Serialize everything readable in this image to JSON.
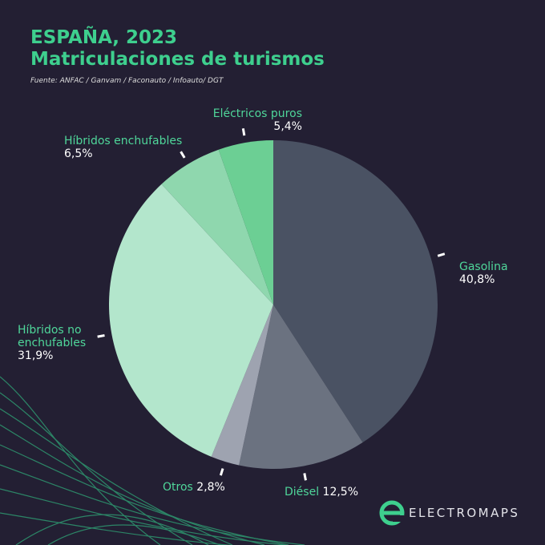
{
  "chart_data": {
    "type": "pie",
    "title": "ESPAÑA, 2023",
    "subtitle": "Matriculaciones de turismos",
    "source": "Fuente: ANFAC / Ganvam / Faconauto / Infoauto/ DGT",
    "categories": [
      "Gasolina",
      "Diésel",
      "Otros",
      "Híbridos no enchufables",
      "Híbridos enchufables",
      "Eléctricos puros"
    ],
    "values": [
      40.8,
      12.5,
      2.8,
      31.9,
      6.5,
      5.4
    ],
    "value_labels": [
      "40,8%",
      "12,5%",
      "2,8%",
      "31,9%",
      "6,5%",
      "5,4%"
    ],
    "colors": [
      "#4a5263",
      "#6b7280",
      "#9ea3b0",
      "#b3e6cc",
      "#8fd7ae",
      "#6ccf94"
    ]
  },
  "brand": "ELECTROMAPS"
}
